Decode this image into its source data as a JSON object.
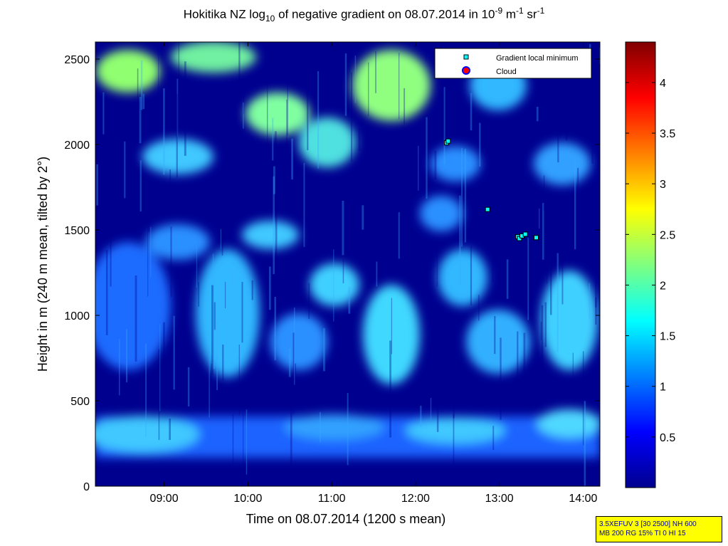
{
  "title": {
    "prefix": "Hokitika NZ log",
    "sub": "10",
    "mid": " of negative gradient on 08.07.2014 in 10",
    "sup1": "-9",
    "mid2": " m",
    "sup2": "-1",
    "mid3": " sr",
    "sup3": "-1"
  },
  "info_box": {
    "line1": "3.5XEFUV 3 [30 2500] NH 600",
    "line2": "MB 200 RG 15% TI 0 HI 15"
  },
  "colors": {
    "background_low": "#00008f",
    "marker_fill": "#00ffff",
    "cloud_fill": "#ff0000",
    "cloud_edge": "#0000ff"
  },
  "chart_data": {
    "type": "heatmap",
    "xlabel": "Time on 08.07.2014 (1200 s mean)",
    "ylabel": "Height in m (240 m mean, tilted by 2°)",
    "xlim": [
      8.18,
      14.2
    ],
    "ylim": [
      0,
      2600
    ],
    "x_ticks": [
      {
        "value": 9,
        "label": "09:00"
      },
      {
        "value": 10,
        "label": "10:00"
      },
      {
        "value": 11,
        "label": "11:00"
      },
      {
        "value": 12,
        "label": "12:00"
      },
      {
        "value": 13,
        "label": "13:00"
      },
      {
        "value": 14,
        "label": "14:00"
      }
    ],
    "y_ticks": [
      {
        "value": 0,
        "label": "0"
      },
      {
        "value": 500,
        "label": "500"
      },
      {
        "value": 1000,
        "label": "1000"
      },
      {
        "value": 1500,
        "label": "1500"
      },
      {
        "value": 2000,
        "label": "2000"
      },
      {
        "value": 2500,
        "label": "2500"
      }
    ],
    "colorbar": {
      "min": 0,
      "max": 4.4,
      "colormap": "jet",
      "ticks": [
        {
          "value": 0.5,
          "label": "0.5"
        },
        {
          "value": 1,
          "label": "1"
        },
        {
          "value": 1.5,
          "label": "1.5"
        },
        {
          "value": 2,
          "label": "2"
        },
        {
          "value": 2.5,
          "label": "2.5"
        },
        {
          "value": 3,
          "label": "3"
        },
        {
          "value": 3.5,
          "label": "3.5"
        },
        {
          "value": 4,
          "label": "4"
        }
      ]
    },
    "legend": {
      "placement": "top-right",
      "entries": [
        {
          "label": "Gradient local minimum",
          "marker": "square"
        },
        {
          "label": "Cloud",
          "marker": "circle"
        }
      ]
    },
    "series": [
      {
        "marker": "square",
        "points": [
          {
            "x": 12.37,
            "y": 2010
          },
          {
            "x": 12.39,
            "y": 2020
          },
          {
            "x": 12.86,
            "y": 1620
          },
          {
            "x": 13.22,
            "y": 1460
          },
          {
            "x": 13.24,
            "y": 1450
          },
          {
            "x": 13.27,
            "y": 1465
          },
          {
            "x": 13.31,
            "y": 1475
          },
          {
            "x": 13.44,
            "y": 1455
          }
        ]
      }
    ]
  }
}
